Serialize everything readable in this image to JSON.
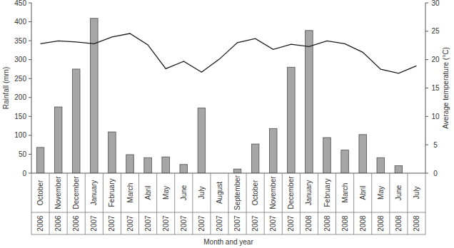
{
  "chart_data": {
    "type": "bar",
    "x_label": "Month and year",
    "y_label": "Rainfall (mm)",
    "y2_label": "Average temperature (°C)",
    "categories": [
      "October",
      "November",
      "December",
      "January",
      "February",
      "March",
      "Abril",
      "May",
      "June",
      "July",
      "August",
      "September",
      "October",
      "November",
      "December",
      "January",
      "February",
      "March",
      "Abril",
      "May",
      "June",
      "July"
    ],
    "years": [
      "2006",
      "2006",
      "2006",
      "2007",
      "2007",
      "2007",
      "2007",
      "2007",
      "2007",
      "2007",
      "2007",
      "2007",
      "2007",
      "2007",
      "2007",
      "2008",
      "2008",
      "2008",
      "2008",
      "2008",
      "2008",
      "2008"
    ],
    "series": [
      {
        "type": "bar",
        "color": "#a6a6a6",
        "values": [
          68,
          175,
          275,
          409,
          109,
          49,
          41,
          43,
          23,
          172,
          0,
          11,
          77,
          118,
          280,
          377,
          94,
          61,
          102,
          41,
          20,
          0
        ]
      },
      {
        "type": "line",
        "color": "#1a1a1a",
        "axis": "y2",
        "values": [
          22.8,
          23.3,
          23.1,
          22.8,
          24.0,
          24.6,
          22.6,
          18.4,
          19.7,
          17.8,
          20.1,
          23.0,
          23.7,
          21.8,
          22.7,
          22.3,
          23.3,
          22.8,
          21.3,
          18.3,
          17.6,
          18.9
        ]
      }
    ],
    "ylim": [
      0,
      450
    ],
    "yticks": [
      0,
      50,
      100,
      150,
      200,
      250,
      300,
      350,
      400,
      450
    ],
    "y2lim": [
      0,
      30
    ],
    "y2ticks": [
      0,
      5,
      10,
      15,
      20,
      25,
      30
    ],
    "grid": false
  }
}
